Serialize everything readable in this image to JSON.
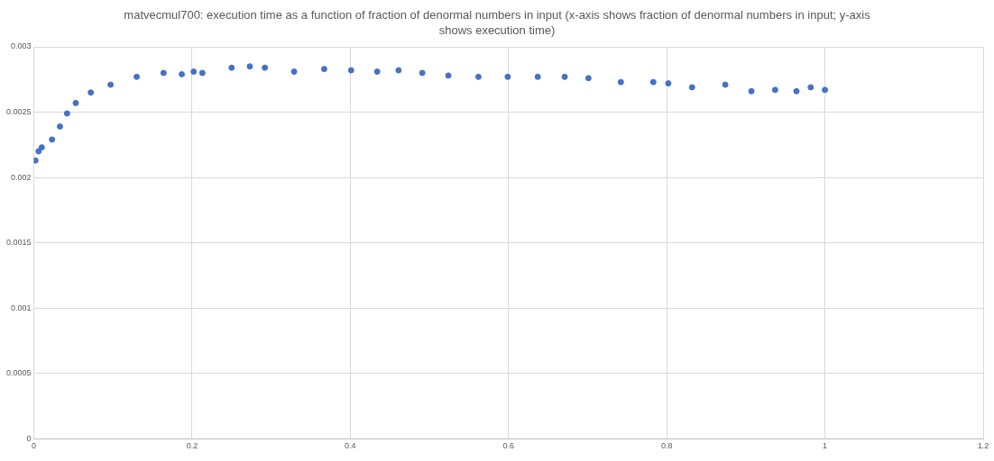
{
  "chart_data": {
    "type": "scatter",
    "title": "matvecmul700: execution time as a function of fraction of denormal numbers in input (x-axis shows fraction of denormal numbers in input; y-axis shows execution time)",
    "series": [
      {
        "color": "#4472c4",
        "x": [
          0.002,
          0.006,
          0.01,
          0.023,
          0.033,
          0.042,
          0.053,
          0.072,
          0.097,
          0.13,
          0.164,
          0.187,
          0.202,
          0.213,
          0.25,
          0.273,
          0.292,
          0.329,
          0.367,
          0.401,
          0.434,
          0.461,
          0.491,
          0.524,
          0.562,
          0.599,
          0.637,
          0.671,
          0.701,
          0.742,
          0.783,
          0.802,
          0.832,
          0.874,
          0.907,
          0.937,
          0.964,
          0.982,
          1.0
        ],
        "values": [
          0.00213,
          0.0022,
          0.00223,
          0.00229,
          0.00239,
          0.00249,
          0.00257,
          0.00265,
          0.00271,
          0.00277,
          0.0028,
          0.00279,
          0.00281,
          0.0028,
          0.00284,
          0.00285,
          0.00284,
          0.00281,
          0.00283,
          0.00282,
          0.00281,
          0.00282,
          0.0028,
          0.00278,
          0.00277,
          0.00277,
          0.00277,
          0.00277,
          0.00276,
          0.00273,
          0.00273,
          0.00272,
          0.00269,
          0.00271,
          0.00266,
          0.00267,
          0.00266,
          0.00269,
          0.00267
        ]
      }
    ],
    "xlim": [
      0,
      1.2
    ],
    "xticks": [
      0,
      0.2,
      0.4,
      0.6,
      0.8,
      1,
      1.2
    ],
    "ylim": [
      0,
      0.003
    ],
    "yticks": [
      0,
      0.0005,
      0.001,
      0.0015,
      0.002,
      0.0025,
      0.003
    ],
    "grid": true,
    "legend": false,
    "marker": "circle"
  }
}
